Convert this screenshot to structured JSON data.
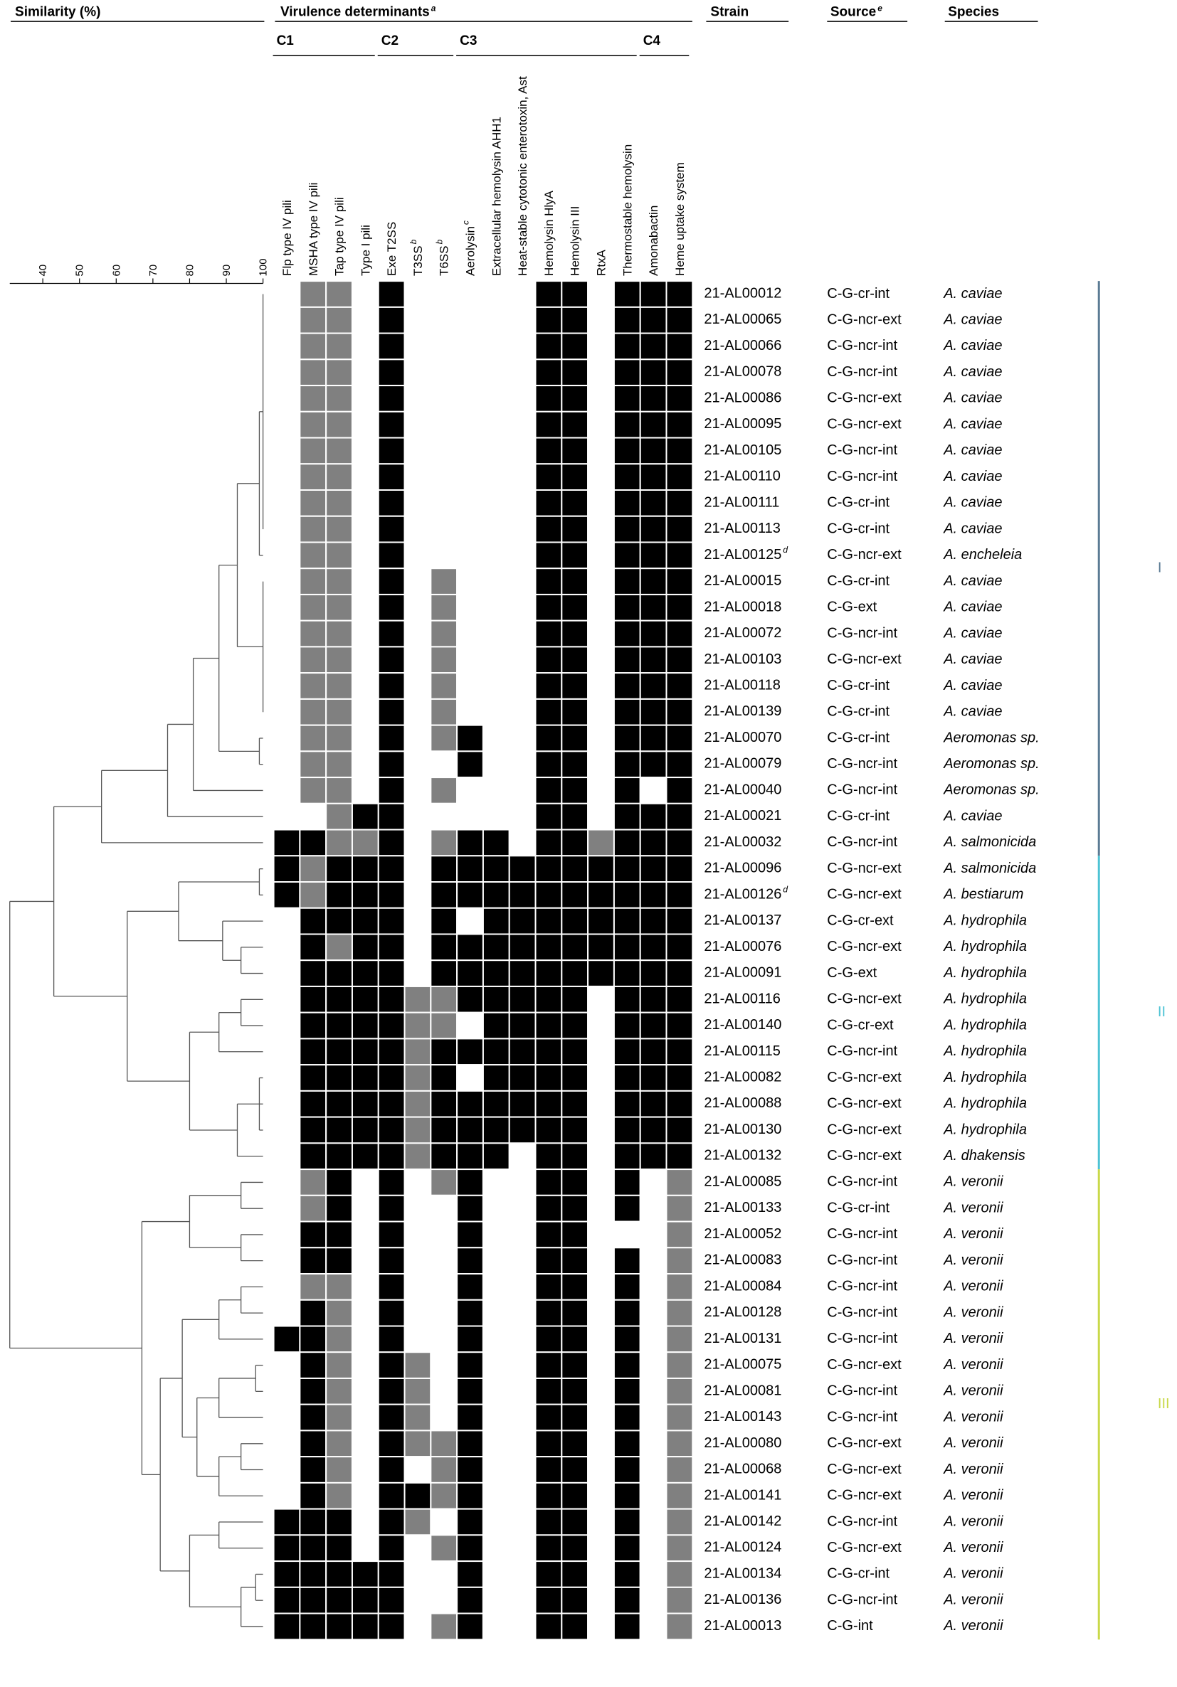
{
  "chart_data": {
    "type": "heatmap",
    "headers": {
      "similarity": "Similarity (%)",
      "virulence": {
        "text": "Virulence determinants",
        "note": "a"
      },
      "strain": "Strain",
      "source": {
        "text": "Source",
        "note": "e"
      },
      "species": "Species"
    },
    "groups": [
      {
        "name": "C1",
        "columns": [
          0,
          3
        ]
      },
      {
        "name": "C2",
        "columns": [
          4,
          6
        ]
      },
      {
        "name": "C3",
        "columns": [
          7,
          13
        ]
      },
      {
        "name": "C4",
        "columns": [
          14,
          15
        ]
      }
    ],
    "columns": [
      {
        "name": "Flp type IV pili"
      },
      {
        "name": "MSHA type IV pili"
      },
      {
        "name": "Tap type IV pili"
      },
      {
        "name": "Type I pili"
      },
      {
        "name": "Exe T2SS"
      },
      {
        "name": "T3SS",
        "note": "b"
      },
      {
        "name": "T6SS",
        "note": "b"
      },
      {
        "name": "Aerolysin",
        "note": "c"
      },
      {
        "name": "Extracellular hemolysin AHH1"
      },
      {
        "name": "Heat-stable cytotonic enterotoxin, Ast"
      },
      {
        "name": "Hemolysin HlyA"
      },
      {
        "name": "Hemolysin III"
      },
      {
        "name": "RtxA"
      },
      {
        "name": "Thermostable hemolysin"
      },
      {
        "name": "Amonabactin"
      },
      {
        "name": "Heme uptake system"
      }
    ],
    "strains": [
      "21-AL00012",
      "21-AL00065",
      "21-AL00066",
      "21-AL00078",
      "21-AL00086",
      "21-AL00095",
      "21-AL00105",
      "21-AL00110",
      "21-AL00111",
      "21-AL00113",
      "21-AL00125",
      "21-AL00015",
      "21-AL00018",
      "21-AL00072",
      "21-AL00103",
      "21-AL00118",
      "21-AL00139",
      "21-AL00070",
      "21-AL00079",
      "21-AL00040",
      "21-AL00021",
      "21-AL00032",
      "21-AL00096",
      "21-AL00126",
      "21-AL00137",
      "21-AL00076",
      "21-AL00091",
      "21-AL00116",
      "21-AL00140",
      "21-AL00115",
      "21-AL00082",
      "21-AL00088",
      "21-AL00130",
      "21-AL00132",
      "21-AL00085",
      "21-AL00133",
      "21-AL00052",
      "21-AL00083",
      "21-AL00084",
      "21-AL00128",
      "21-AL00131",
      "21-AL00075",
      "21-AL00081",
      "21-AL00143",
      "21-AL00080",
      "21-AL00068",
      "21-AL00141",
      "21-AL00142",
      "21-AL00124",
      "21-AL00134",
      "21-AL00136",
      "21-AL00013"
    ],
    "strain_notes": [
      {
        "row": 10,
        "note": "d"
      },
      {
        "row": 23,
        "note": "d"
      }
    ],
    "sources": [
      "C-G-cr-int",
      "C-G-ncr-ext",
      "C-G-ncr-int",
      "C-G-ncr-int",
      "C-G-ncr-ext",
      "C-G-ncr-ext",
      "C-G-ncr-int",
      "C-G-ncr-int",
      "C-G-cr-int",
      "C-G-cr-int",
      "C-G-ncr-ext",
      "C-G-cr-int",
      "C-G-ext",
      "C-G-ncr-int",
      "C-G-ncr-ext",
      "C-G-cr-int",
      "C-G-cr-int",
      "C-G-cr-int",
      "C-G-ncr-int",
      "C-G-ncr-int",
      "C-G-cr-int",
      "C-G-ncr-int",
      "C-G-ncr-ext",
      "C-G-ncr-ext",
      "C-G-cr-ext",
      "C-G-ncr-ext",
      "C-G-ext",
      "C-G-ncr-ext",
      "C-G-cr-ext",
      "C-G-ncr-int",
      "C-G-ncr-ext",
      "C-G-ncr-ext",
      "C-G-ncr-ext",
      "C-G-ncr-ext",
      "C-G-ncr-int",
      "C-G-cr-int",
      "C-G-ncr-int",
      "C-G-ncr-int",
      "C-G-ncr-int",
      "C-G-ncr-int",
      "C-G-ncr-int",
      "C-G-ncr-ext",
      "C-G-ncr-int",
      "C-G-ncr-int",
      "C-G-ncr-ext",
      "C-G-ncr-ext",
      "C-G-ncr-ext",
      "C-G-ncr-int",
      "C-G-ncr-ext",
      "C-G-cr-int",
      "C-G-ncr-int",
      "C-G-int"
    ],
    "species": [
      "A. caviae",
      "A. caviae",
      "A. caviae",
      "A. caviae",
      "A. caviae",
      "A. caviae",
      "A. caviae",
      "A. caviae",
      "A. caviae",
      "A. caviae",
      "A. encheleia",
      "A. caviae",
      "A. caviae",
      "A. caviae",
      "A. caviae",
      "A. caviae",
      "A. caviae",
      "Aeromonas sp.",
      "Aeromonas sp.",
      "Aeromonas sp.",
      "A. caviae",
      "A. salmonicida",
      "A. salmonicida",
      "A. bestiarum",
      "A. hydrophila",
      "A. hydrophila",
      "A. hydrophila",
      "A. hydrophila",
      "A. hydrophila",
      "A. hydrophila",
      "A. hydrophila",
      "A. hydrophila",
      "A. hydrophila",
      "A. dhakensis",
      "A. veronii",
      "A. veronii",
      "A. veronii",
      "A. veronii",
      "A. veronii",
      "A. veronii",
      "A. veronii",
      "A. veronii",
      "A. veronii",
      "A. veronii",
      "A. veronii",
      "A. veronii",
      "A. veronii",
      "A. veronii",
      "A. veronii",
      "A. veronii",
      "A. veronii",
      "A. veronii"
    ],
    "level_colors": [
      "#ffffff",
      "#808080",
      "#000000"
    ],
    "matrix": [
      [
        0,
        1,
        1,
        0,
        2,
        0,
        0,
        0,
        0,
        0,
        2,
        2,
        0,
        2,
        2,
        2
      ],
      [
        0,
        1,
        1,
        0,
        2,
        0,
        0,
        0,
        0,
        0,
        2,
        2,
        0,
        2,
        2,
        2
      ],
      [
        0,
        1,
        1,
        0,
        2,
        0,
        0,
        0,
        0,
        0,
        2,
        2,
        0,
        2,
        2,
        2
      ],
      [
        0,
        1,
        1,
        0,
        2,
        0,
        0,
        0,
        0,
        0,
        2,
        2,
        0,
        2,
        2,
        2
      ],
      [
        0,
        1,
        1,
        0,
        2,
        0,
        0,
        0,
        0,
        0,
        2,
        2,
        0,
        2,
        2,
        2
      ],
      [
        0,
        1,
        1,
        0,
        2,
        0,
        0,
        0,
        0,
        0,
        2,
        2,
        0,
        2,
        2,
        2
      ],
      [
        0,
        1,
        1,
        0,
        2,
        0,
        0,
        0,
        0,
        0,
        2,
        2,
        0,
        2,
        2,
        2
      ],
      [
        0,
        1,
        1,
        0,
        2,
        0,
        0,
        0,
        0,
        0,
        2,
        2,
        0,
        2,
        2,
        2
      ],
      [
        0,
        1,
        1,
        0,
        2,
        0,
        0,
        0,
        0,
        0,
        2,
        2,
        0,
        2,
        2,
        2
      ],
      [
        0,
        1,
        1,
        0,
        2,
        0,
        0,
        0,
        0,
        0,
        2,
        2,
        0,
        2,
        2,
        2
      ],
      [
        0,
        1,
        1,
        0,
        2,
        0,
        0,
        0,
        0,
        0,
        2,
        2,
        0,
        2,
        2,
        2
      ],
      [
        0,
        1,
        1,
        0,
        2,
        0,
        1,
        0,
        0,
        0,
        2,
        2,
        0,
        2,
        2,
        2
      ],
      [
        0,
        1,
        1,
        0,
        2,
        0,
        1,
        0,
        0,
        0,
        2,
        2,
        0,
        2,
        2,
        2
      ],
      [
        0,
        1,
        1,
        0,
        2,
        0,
        1,
        0,
        0,
        0,
        2,
        2,
        0,
        2,
        2,
        2
      ],
      [
        0,
        1,
        1,
        0,
        2,
        0,
        1,
        0,
        0,
        0,
        2,
        2,
        0,
        2,
        2,
        2
      ],
      [
        0,
        1,
        1,
        0,
        2,
        0,
        1,
        0,
        0,
        0,
        2,
        2,
        0,
        2,
        2,
        2
      ],
      [
        0,
        1,
        1,
        0,
        2,
        0,
        1,
        0,
        0,
        0,
        2,
        2,
        0,
        2,
        2,
        2
      ],
      [
        0,
        1,
        1,
        0,
        2,
        0,
        1,
        2,
        0,
        0,
        2,
        2,
        0,
        2,
        2,
        2
      ],
      [
        0,
        1,
        1,
        0,
        2,
        0,
        0,
        2,
        0,
        0,
        2,
        2,
        0,
        2,
        2,
        2
      ],
      [
        0,
        1,
        1,
        0,
        2,
        0,
        1,
        0,
        0,
        0,
        2,
        2,
        0,
        2,
        0,
        2
      ],
      [
        0,
        0,
        1,
        2,
        2,
        0,
        0,
        0,
        0,
        0,
        2,
        2,
        0,
        2,
        2,
        2
      ],
      [
        2,
        2,
        1,
        1,
        2,
        0,
        1,
        2,
        2,
        0,
        2,
        2,
        1,
        2,
        2,
        2
      ],
      [
        2,
        1,
        2,
        2,
        2,
        0,
        2,
        2,
        2,
        2,
        2,
        2,
        2,
        2,
        2,
        2
      ],
      [
        2,
        1,
        2,
        2,
        2,
        0,
        2,
        2,
        2,
        2,
        2,
        2,
        2,
        2,
        2,
        2
      ],
      [
        0,
        2,
        2,
        2,
        2,
        0,
        2,
        0,
        2,
        2,
        2,
        2,
        2,
        2,
        2,
        2
      ],
      [
        0,
        2,
        1,
        2,
        2,
        0,
        2,
        2,
        2,
        2,
        2,
        2,
        2,
        2,
        2,
        2
      ],
      [
        0,
        2,
        2,
        2,
        2,
        0,
        2,
        2,
        2,
        2,
        2,
        2,
        2,
        2,
        2,
        2
      ],
      [
        0,
        2,
        2,
        2,
        2,
        1,
        1,
        2,
        2,
        2,
        2,
        2,
        0,
        2,
        2,
        2
      ],
      [
        0,
        2,
        2,
        2,
        2,
        1,
        1,
        0,
        2,
        2,
        2,
        2,
        0,
        2,
        2,
        2
      ],
      [
        0,
        2,
        2,
        2,
        2,
        1,
        2,
        2,
        2,
        2,
        2,
        2,
        0,
        2,
        2,
        2
      ],
      [
        0,
        2,
        2,
        2,
        2,
        1,
        2,
        0,
        2,
        2,
        2,
        2,
        0,
        2,
        2,
        2
      ],
      [
        0,
        2,
        2,
        2,
        2,
        1,
        2,
        2,
        2,
        2,
        2,
        2,
        0,
        2,
        2,
        2
      ],
      [
        0,
        2,
        2,
        2,
        2,
        1,
        2,
        2,
        2,
        2,
        2,
        2,
        0,
        2,
        2,
        2
      ],
      [
        0,
        2,
        2,
        2,
        2,
        1,
        2,
        2,
        2,
        0,
        2,
        2,
        0,
        2,
        2,
        2
      ],
      [
        0,
        1,
        2,
        0,
        2,
        0,
        1,
        2,
        0,
        0,
        2,
        2,
        0,
        2,
        0,
        1
      ],
      [
        0,
        1,
        2,
        0,
        2,
        0,
        0,
        2,
        0,
        0,
        2,
        2,
        0,
        2,
        0,
        1
      ],
      [
        0,
        2,
        2,
        0,
        2,
        0,
        0,
        2,
        0,
        0,
        2,
        2,
        0,
        0,
        0,
        1
      ],
      [
        0,
        2,
        2,
        0,
        2,
        0,
        0,
        2,
        0,
        0,
        2,
        2,
        0,
        2,
        0,
        1
      ],
      [
        0,
        1,
        1,
        0,
        2,
        0,
        0,
        2,
        0,
        0,
        2,
        2,
        0,
        2,
        0,
        1
      ],
      [
        0,
        2,
        1,
        0,
        2,
        0,
        0,
        2,
        0,
        0,
        2,
        2,
        0,
        2,
        0,
        1
      ],
      [
        2,
        2,
        1,
        0,
        2,
        0,
        0,
        2,
        0,
        0,
        2,
        2,
        0,
        2,
        0,
        1
      ],
      [
        0,
        2,
        1,
        0,
        2,
        1,
        0,
        2,
        0,
        0,
        2,
        2,
        0,
        2,
        0,
        1
      ],
      [
        0,
        2,
        1,
        0,
        2,
        1,
        0,
        2,
        0,
        0,
        2,
        2,
        0,
        2,
        0,
        1
      ],
      [
        0,
        2,
        1,
        0,
        2,
        1,
        0,
        2,
        0,
        0,
        2,
        2,
        0,
        2,
        0,
        1
      ],
      [
        0,
        2,
        1,
        0,
        2,
        1,
        1,
        2,
        0,
        0,
        2,
        2,
        0,
        2,
        0,
        1
      ],
      [
        0,
        2,
        1,
        0,
        2,
        0,
        1,
        2,
        0,
        0,
        2,
        2,
        0,
        2,
        0,
        1
      ],
      [
        0,
        2,
        1,
        0,
        2,
        2,
        1,
        2,
        0,
        0,
        2,
        2,
        0,
        2,
        0,
        1
      ],
      [
        2,
        2,
        2,
        0,
        2,
        1,
        0,
        2,
        0,
        0,
        2,
        2,
        0,
        2,
        0,
        1
      ],
      [
        2,
        2,
        2,
        0,
        2,
        0,
        1,
        2,
        0,
        0,
        2,
        2,
        0,
        2,
        0,
        1
      ],
      [
        2,
        2,
        2,
        2,
        2,
        0,
        0,
        2,
        0,
        0,
        2,
        2,
        0,
        2,
        0,
        1
      ],
      [
        2,
        2,
        2,
        2,
        2,
        0,
        0,
        2,
        0,
        0,
        2,
        2,
        0,
        2,
        0,
        1
      ],
      [
        2,
        2,
        2,
        2,
        2,
        0,
        1,
        2,
        0,
        0,
        2,
        2,
        0,
        2,
        0,
        1
      ]
    ],
    "xlim": [
      31,
      100
    ],
    "xticks": [
      40,
      50,
      60,
      70,
      80,
      90,
      100
    ],
    "dendrogram": [
      31,
      [
        43,
        [
          56,
          [
            74,
            [
              81,
              [
                88,
                [
                  93,
                  [
                    99,
                    [
                      100,
                      0,
                      1,
                      2,
                      3,
                      4,
                      5,
                      6,
                      7,
                      8,
                      9
                    ],
                    10
                  ],
                  [
                    100,
                    11,
                    12,
                    13,
                    14,
                    15,
                    16
                  ]
                ],
                [
                  99,
                  17,
                  18
                ]
              ],
              19
            ],
            20
          ],
          21
        ],
        [
          63,
          [
            77,
            [
              99,
              22,
              23
            ],
            [
              89,
              24,
              [
                94,
                25,
                26
              ]
            ]
          ],
          [
            80,
            [
              88,
              [
                94,
                27,
                28
              ],
              29
            ],
            [
              93,
              [
                99,
                30,
                31,
                32
              ],
              33
            ]
          ]
        ]
      ],
      [
        67,
        [
          80,
          [
            94,
            34,
            35
          ],
          [
            94,
            36,
            37
          ]
        ],
        [
          72,
          [
            78,
            [
              88,
              [
                94,
                38,
                39
              ],
              40
            ],
            [
              82,
              [
                88,
                [
                  98,
                  41,
                  42
                ],
                43
              ],
              [
                88,
                [
                  94,
                  44,
                  45
                ],
                46
              ]
            ]
          ],
          [
            80,
            [
              88,
              47,
              48
            ],
            [
              94,
              [
                98,
                49,
                50
              ],
              51
            ]
          ]
        ]
      ]
    ],
    "clusters": [
      {
        "label": "I",
        "color": "#5b7b94",
        "rows": [
          0,
          21
        ]
      },
      {
        "label": "II",
        "color": "#4ec3d4",
        "rows": [
          22,
          33
        ]
      },
      {
        "label": "III",
        "color": "#c9d94a",
        "rows": [
          34,
          51
        ]
      }
    ]
  }
}
